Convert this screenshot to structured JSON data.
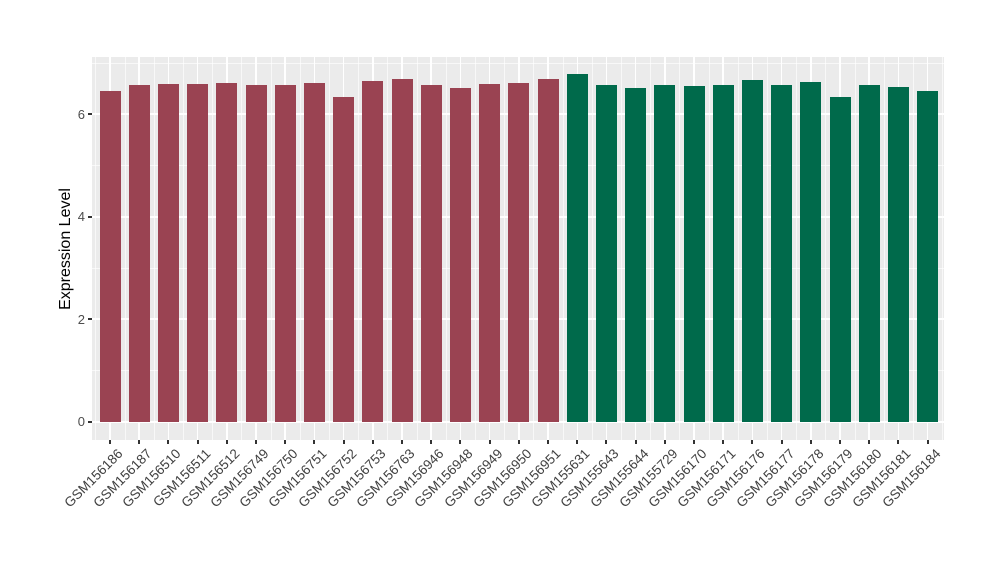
{
  "chart_data": {
    "type": "bar",
    "title": "",
    "xlabel": "",
    "ylabel": "Expression Level",
    "legend": "none",
    "panel_background": "#EBEBEB",
    "grid_color": "#FFFFFF",
    "grid": "on",
    "axis_text_color": "#4D4D4D",
    "ylim": [
      0,
      7.12
    ],
    "yticks": [
      0,
      2,
      4,
      6
    ],
    "yticks_minor": [
      1,
      3,
      5,
      7
    ],
    "categories": [
      "GSM156186",
      "GSM156187",
      "GSM156510",
      "GSM156511",
      "GSM156512",
      "GSM156749",
      "GSM156750",
      "GSM156751",
      "GSM156752",
      "GSM156753",
      "GSM156763",
      "GSM156946",
      "GSM156948",
      "GSM156949",
      "GSM156950",
      "GSM156951",
      "GSM155631",
      "GSM155643",
      "GSM155644",
      "GSM155729",
      "GSM156170",
      "GSM156171",
      "GSM156176",
      "GSM156177",
      "GSM156178",
      "GSM156179",
      "GSM156180",
      "GSM156181",
      "GSM156184"
    ],
    "values": [
      6.46,
      6.57,
      6.6,
      6.59,
      6.62,
      6.57,
      6.57,
      6.61,
      6.33,
      6.66,
      6.7,
      6.57,
      6.51,
      6.59,
      6.61,
      6.69,
      6.78,
      6.57,
      6.51,
      6.58,
      6.55,
      6.58,
      6.67,
      6.58,
      6.63,
      6.34,
      6.57,
      6.53,
      6.45
    ],
    "groups": [
      "maroon",
      "maroon",
      "maroon",
      "maroon",
      "maroon",
      "maroon",
      "maroon",
      "maroon",
      "maroon",
      "maroon",
      "maroon",
      "maroon",
      "maroon",
      "maroon",
      "maroon",
      "maroon",
      "green",
      "green",
      "green",
      "green",
      "green",
      "green",
      "green",
      "green",
      "green",
      "green",
      "green",
      "green",
      "green"
    ],
    "group_colors": {
      "maroon": "#9A4352",
      "green": "#006A4B"
    }
  }
}
